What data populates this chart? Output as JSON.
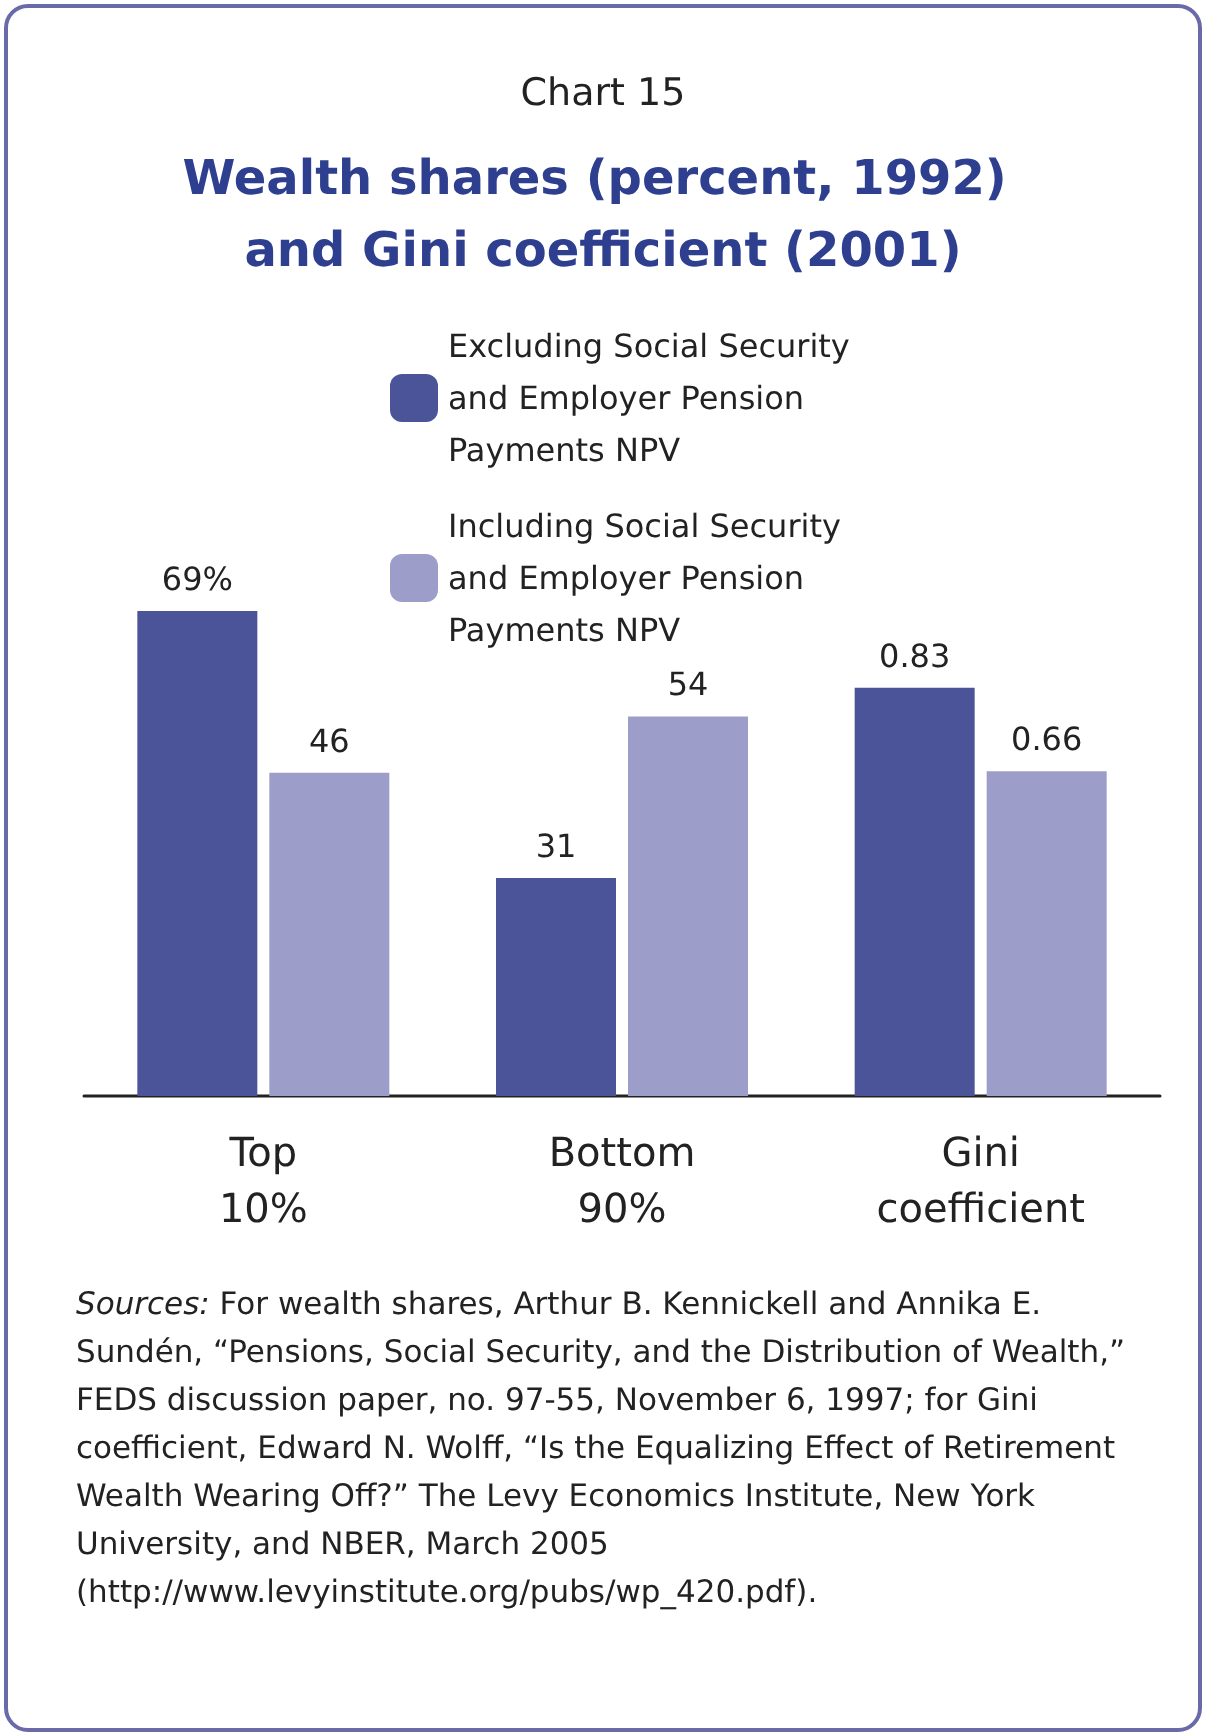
{
  "chart_data": {
    "type": "bar",
    "subtitle": "Chart 15",
    "title": "Wealth shares (percent, 1992) and Gini coefficient (2001)",
    "categories": [
      "Top 10%",
      "Bottom 90%",
      "Gini coefficient"
    ],
    "series": [
      {
        "name": "Excluding Social Security and Employer Pension Payments NPV",
        "color": "#4b5399",
        "values": [
          69,
          31,
          null
        ],
        "value_labels": [
          "69%",
          "31",
          null
        ]
      },
      {
        "name": "Including Social Security and Employer Pension Payments NPV",
        "color": "#9d9dc9",
        "values": [
          46,
          54,
          null
        ],
        "value_labels": [
          "46",
          "54",
          null
        ]
      },
      {
        "color": "#4b5399",
        "axis": "y2",
        "values": [
          null,
          null,
          0.83
        ],
        "value_labels": [
          null,
          null,
          "0.83"
        ]
      },
      {
        "color": "#9d9dc9",
        "axis": "y2",
        "values": [
          null,
          null,
          0.66
        ],
        "value_labels": [
          null,
          null,
          "0.66"
        ]
      }
    ],
    "tick_labels": "x",
    "legend": "top right",
    "annotations": [
      "Sources: For wealth shares, Arthur B. Kennickell and Annika E. Sundén, “Pensions, Social Security, and the Distribution of Wealth,” FEDS discussion paper, no. 97-55, November 6, 1997; for Gini coefficient, Edward N. Wolff, “Is the Equalizing Effect of Retirement Wealth Wearing Off?” The Levy Economics Institute, New York University, and NBER, March 2005 (http://www.levyinstitute.org/pubs/wp_420.pdf)."
    ]
  }
}
